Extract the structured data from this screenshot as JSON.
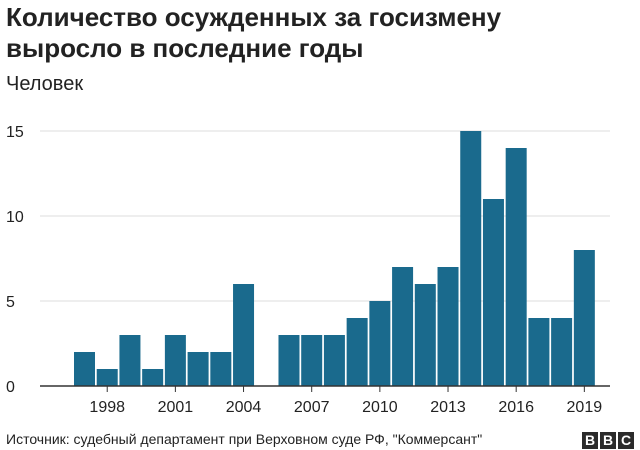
{
  "title_lines": [
    "Количество осужденных за госизмену",
    "выросло в последние годы"
  ],
  "unit_label": "Человек",
  "source": "Источник: судебный департамент при Верховном суде РФ, \"Коммерсант\"",
  "logo": {
    "letters": [
      "B",
      "B",
      "C"
    ]
  },
  "colors": {
    "bar": "#1a6a8d",
    "grid": "#dddddd",
    "axis": "#333333",
    "text": "#222222"
  },
  "chart_data": {
    "type": "bar",
    "x": [
      1997,
      1998,
      1999,
      2000,
      2001,
      2002,
      2003,
      2004,
      2005,
      2006,
      2007,
      2008,
      2009,
      2010,
      2011,
      2012,
      2013,
      2014,
      2015,
      2016,
      2017,
      2018,
      2019
    ],
    "values": [
      2,
      1,
      3,
      1,
      3,
      2,
      2,
      6,
      0,
      3,
      3,
      3,
      4,
      5,
      7,
      6,
      7,
      15,
      11,
      14,
      4,
      4,
      8
    ],
    "x_ticks": [
      1998,
      2001,
      2004,
      2007,
      2010,
      2013,
      2016,
      2019
    ],
    "y_ticks": [
      0,
      5,
      10,
      15
    ],
    "ylim": [
      0,
      15
    ],
    "ylabel": "Человек",
    "grid": true
  }
}
